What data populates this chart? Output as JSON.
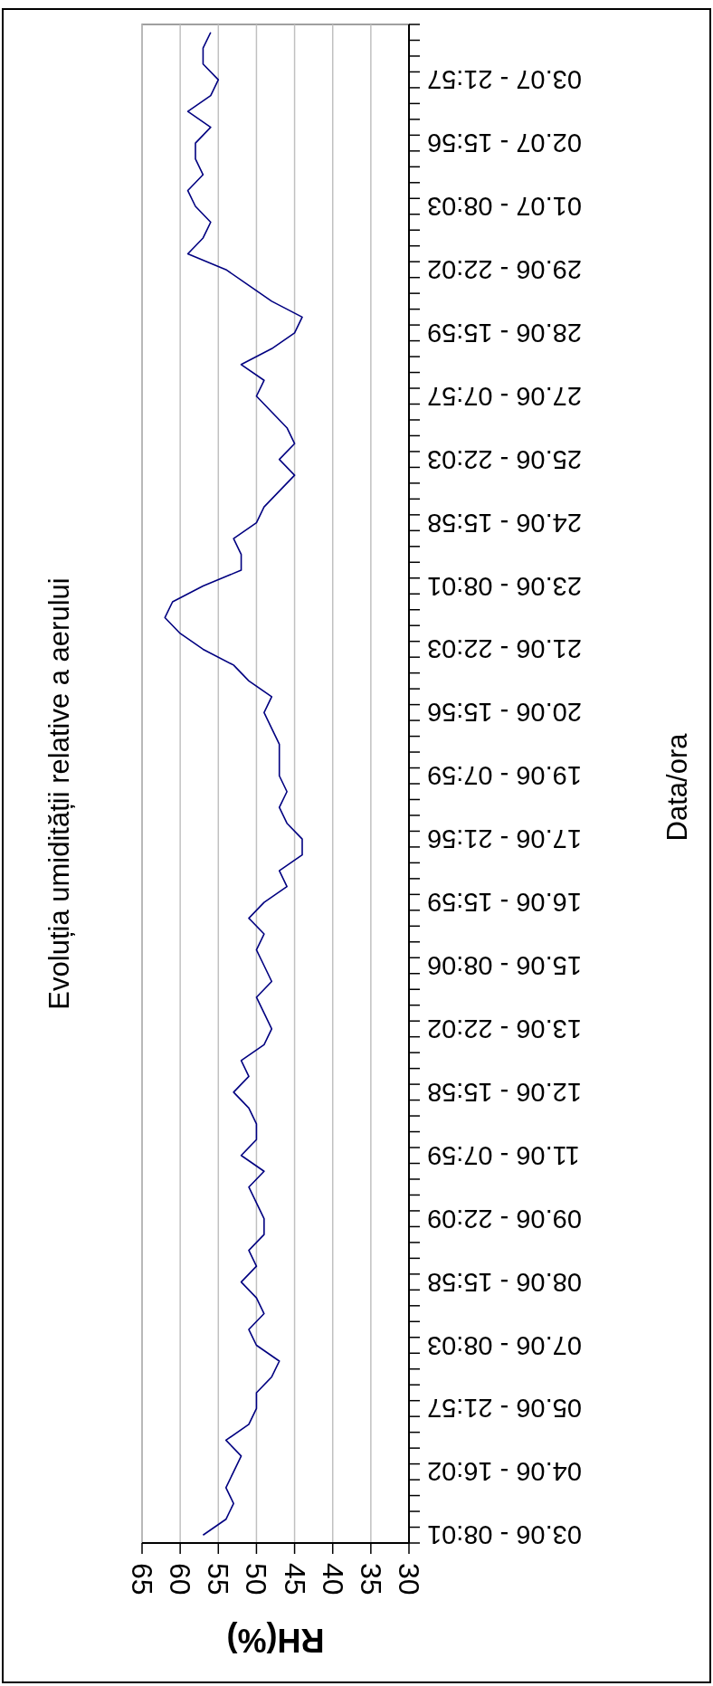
{
  "chart_data": {
    "type": "line",
    "orientation": "horizontal",
    "title": "Evoluția umidității relative a aerului",
    "xlabel": "RH(%)",
    "ylabel": "Data/ora",
    "categories": [
      null,
      null,
      null,
      "03.07 - 21:57",
      null,
      null,
      null,
      "02.07 - 15:56",
      null,
      null,
      null,
      "01.07 - 08:03",
      null,
      null,
      null,
      "29.06 - 22:02",
      null,
      null,
      null,
      "28.06 - 15:59",
      null,
      null,
      null,
      "27.06 - 07:57",
      null,
      null,
      null,
      "25.06 - 22:03",
      null,
      null,
      null,
      "24.06 - 15:58",
      null,
      null,
      null,
      "23.06 - 08:01",
      null,
      null,
      null,
      "21.06 - 22:03",
      null,
      null,
      null,
      "20.06 - 15:56",
      null,
      null,
      null,
      "19.06 - 07:59",
      null,
      null,
      null,
      "17.06 - 21:56",
      null,
      null,
      null,
      "16.06 - 15:59",
      null,
      null,
      null,
      "15.06 - 08:06",
      null,
      null,
      null,
      "13.06 - 22:02",
      null,
      null,
      null,
      "12.06 - 15:58",
      null,
      null,
      null,
      "11.06 - 07:59",
      null,
      null,
      null,
      "09.06 - 22:09",
      null,
      null,
      null,
      "08.06 - 15:58",
      null,
      null,
      null,
      "07.06 - 08:03",
      null,
      null,
      null,
      "05.06 - 21:57",
      null,
      null,
      null,
      "04.06 - 16:02",
      null,
      null,
      null,
      "03.06 - 08:01"
    ],
    "series": [
      {
        "color": "#000080",
        "values": [
          56,
          57,
          57,
          55,
          56,
          59,
          56,
          58,
          58,
          57,
          59,
          58,
          56,
          57,
          59,
          54,
          51,
          48,
          44,
          45,
          48,
          52,
          49,
          50,
          48,
          46,
          45,
          47,
          45,
          47,
          49,
          50,
          53,
          52,
          52,
          57,
          61,
          62,
          60,
          57,
          53,
          51,
          48,
          49,
          48,
          47,
          47,
          47,
          46,
          47,
          46,
          44,
          44,
          47,
          46,
          49,
          51,
          49,
          50,
          49,
          48,
          50,
          49,
          48,
          49,
          52,
          51,
          53,
          51,
          50,
          50,
          52,
          49,
          51,
          50,
          49,
          49,
          51,
          50,
          52,
          50,
          49,
          51,
          50,
          47,
          48,
          50,
          50,
          51,
          54,
          52,
          53,
          54,
          53,
          54,
          57
        ]
      }
    ],
    "xlim": [
      65,
      30
    ],
    "xticks": [
      65,
      60,
      55,
      50,
      45,
      40,
      35,
      30
    ],
    "grid": "x",
    "marker": "none",
    "line_style": "solid"
  }
}
